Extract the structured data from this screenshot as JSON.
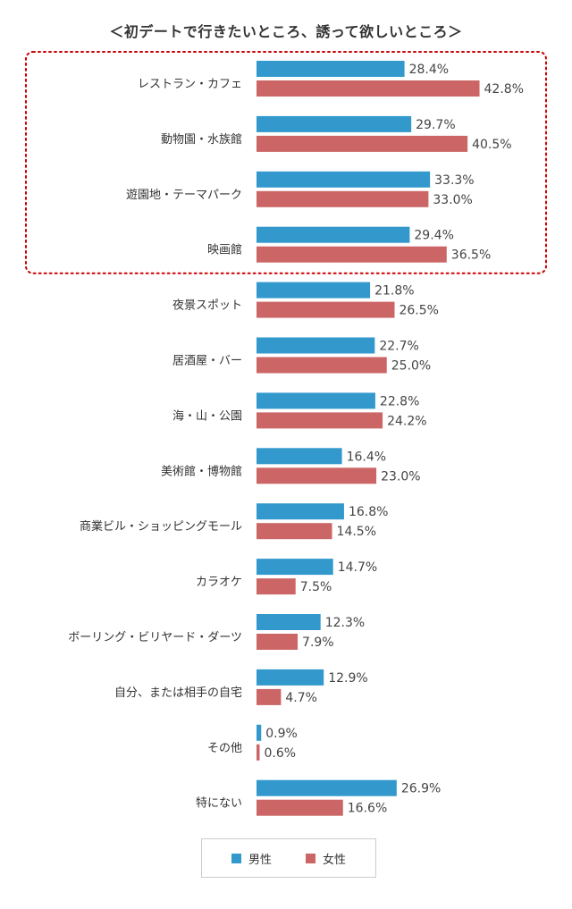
{
  "chart_data": {
    "type": "bar",
    "orientation": "horizontal",
    "title": "＜初デートで行きたいところ、誘って欲しいところ＞",
    "categories": [
      "レストラン・カフェ",
      "動物園・水族館",
      "遊園地・テーマパーク",
      "映画館",
      "夜景スポット",
      "居酒屋・バー",
      "海・山・公園",
      "美術館・博物館",
      "商業ビル・ショッピングモール",
      "カラオケ",
      "ボーリング・ビリヤード・ダーツ",
      "自分、または相手の自宅",
      "その他",
      "特にない"
    ],
    "series": [
      {
        "name": "男性",
        "color": "#3399cc",
        "values": [
          28.4,
          29.7,
          33.3,
          29.4,
          21.8,
          22.7,
          22.8,
          16.4,
          16.8,
          14.7,
          12.3,
          12.9,
          0.9,
          26.9
        ]
      },
      {
        "name": "女性",
        "color": "#cc6666",
        "values": [
          42.8,
          40.5,
          33.0,
          36.5,
          26.5,
          25.0,
          24.2,
          23.0,
          14.5,
          7.5,
          7.9,
          4.7,
          0.6,
          16.6
        ]
      }
    ],
    "value_suffix": "%",
    "legend_position": "bottom",
    "highlight_color": "#cc0000",
    "highlighted_categories": 4
  }
}
